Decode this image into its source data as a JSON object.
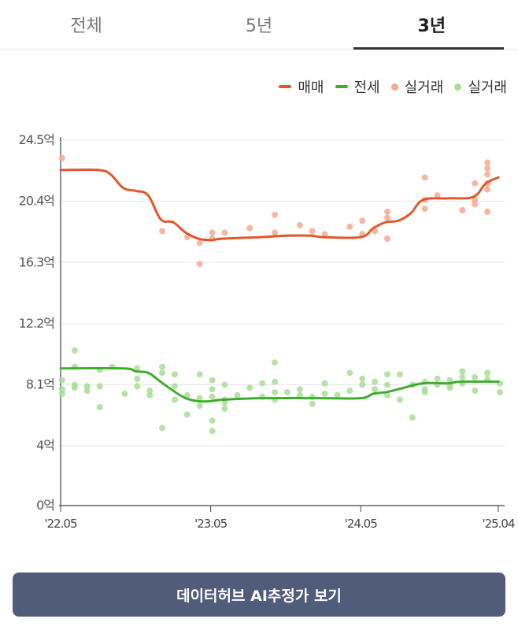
{
  "tabs": [
    {
      "label": "전체",
      "active": false
    },
    {
      "label": "5년",
      "active": false
    },
    {
      "label": "3년",
      "active": true
    }
  ],
  "legend": {
    "sale_label": "매매",
    "jeonse_label": "전세",
    "sale_tx_label": "실거래",
    "jeonse_tx_label": "실거래"
  },
  "colors": {
    "sale": "#e2572a",
    "jeonse": "#3dae2b",
    "sale_dot": "#f4a994",
    "jeonse_dot": "#a8dd97",
    "grid": "#e4e4ee",
    "axis": "#444444"
  },
  "cta_label": "데이터허브 AI추정가 보기",
  "chart_data": {
    "type": "line",
    "y_unit": "억",
    "ylim": [
      0,
      24.5
    ],
    "y_ticks": [
      {
        "value": 0,
        "label": "0억"
      },
      {
        "value": 4,
        "label": "4억"
      },
      {
        "value": 8.1,
        "label": "8.1억"
      },
      {
        "value": 12.2,
        "label": "12.2억"
      },
      {
        "value": 16.3,
        "label": "16.3억"
      },
      {
        "value": 20.4,
        "label": "20.4억"
      },
      {
        "value": 24.5,
        "label": "24.5억"
      }
    ],
    "xlim": [
      "2022-05",
      "2025-04"
    ],
    "x_ticks": [
      {
        "value": "2022-05",
        "label": "'22.05"
      },
      {
        "value": "2023-05",
        "label": "'23.05"
      },
      {
        "value": "2024-05",
        "label": "'24.05"
      },
      {
        "value": "2025-04",
        "label": "'25.04"
      }
    ],
    "grid": true,
    "series": [
      {
        "name": "매매",
        "kind": "line",
        "points": [
          [
            "2022-05",
            22.5
          ],
          [
            "2022-08",
            22.5
          ],
          [
            "2022-09",
            22.2
          ],
          [
            "2022-10",
            21.3
          ],
          [
            "2022-11",
            21.1
          ],
          [
            "2022-12",
            20.8
          ],
          [
            "2023-01",
            19.2
          ],
          [
            "2023-02",
            19.0
          ],
          [
            "2023-03",
            18.3
          ],
          [
            "2023-04",
            17.9
          ],
          [
            "2023-05",
            17.8
          ],
          [
            "2023-06",
            17.9
          ],
          [
            "2023-09",
            18.0
          ],
          [
            "2023-11",
            18.1
          ],
          [
            "2024-01",
            18.1
          ],
          [
            "2024-02",
            18.0
          ],
          [
            "2024-05",
            18.0
          ],
          [
            "2024-06",
            18.6
          ],
          [
            "2024-07",
            19.0
          ],
          [
            "2024-08",
            19.1
          ],
          [
            "2024-09",
            19.6
          ],
          [
            "2024-10",
            20.5
          ],
          [
            "2024-12",
            20.6
          ],
          [
            "2025-02",
            20.7
          ],
          [
            "2025-03",
            21.6
          ],
          [
            "2025-04",
            22.0
          ]
        ]
      },
      {
        "name": "전세",
        "kind": "line",
        "points": [
          [
            "2022-05",
            9.2
          ],
          [
            "2022-10",
            9.2
          ],
          [
            "2022-11",
            9.0
          ],
          [
            "2022-12",
            8.9
          ],
          [
            "2023-01",
            8.3
          ],
          [
            "2023-02",
            7.7
          ],
          [
            "2023-03",
            7.2
          ],
          [
            "2023-04",
            7.0
          ],
          [
            "2023-05",
            7.0
          ],
          [
            "2023-06",
            7.1
          ],
          [
            "2023-09",
            7.2
          ],
          [
            "2024-02",
            7.2
          ],
          [
            "2024-05",
            7.2
          ],
          [
            "2024-06",
            7.5
          ],
          [
            "2024-07",
            7.6
          ],
          [
            "2024-08",
            7.8
          ],
          [
            "2024-10",
            8.2
          ],
          [
            "2024-12",
            8.2
          ],
          [
            "2025-01",
            8.3
          ],
          [
            "2025-04",
            8.3
          ]
        ]
      },
      {
        "name": "실거래",
        "kind": "scatter",
        "of": "매매",
        "points": [
          [
            "2022-05",
            23.3
          ],
          [
            "2023-01",
            18.4
          ],
          [
            "2023-03",
            18.0
          ],
          [
            "2023-04",
            17.6
          ],
          [
            "2023-04",
            16.2
          ],
          [
            "2023-05",
            18.3
          ],
          [
            "2023-05",
            17.9
          ],
          [
            "2023-06",
            18.3
          ],
          [
            "2023-08",
            18.6
          ],
          [
            "2023-10",
            19.5
          ],
          [
            "2023-10",
            18.3
          ],
          [
            "2023-12",
            18.8
          ],
          [
            "2024-01",
            18.4
          ],
          [
            "2024-02",
            18.2
          ],
          [
            "2024-04",
            18.7
          ],
          [
            "2024-05",
            18.2
          ],
          [
            "2024-05",
            19.1
          ],
          [
            "2024-06",
            18.4
          ],
          [
            "2024-07",
            19.7
          ],
          [
            "2024-07",
            19.3
          ],
          [
            "2024-07",
            17.9
          ],
          [
            "2024-10",
            22.0
          ],
          [
            "2024-10",
            20.5
          ],
          [
            "2024-10",
            19.9
          ],
          [
            "2024-11",
            20.8
          ],
          [
            "2025-01",
            19.8
          ],
          [
            "2025-02",
            20.5
          ],
          [
            "2025-02",
            20.2
          ],
          [
            "2025-02",
            21.6
          ],
          [
            "2025-03",
            23.0
          ],
          [
            "2025-03",
            22.6
          ],
          [
            "2025-03",
            22.2
          ],
          [
            "2025-03",
            21.6
          ],
          [
            "2025-03",
            21.2
          ],
          [
            "2025-03",
            19.7
          ]
        ]
      },
      {
        "name": "실거래",
        "kind": "scatter",
        "of": "전세",
        "points": [
          [
            "2022-05",
            8.4
          ],
          [
            "2022-05",
            7.8
          ],
          [
            "2022-05",
            7.5
          ],
          [
            "2022-06",
            9.3
          ],
          [
            "2022-06",
            7.9
          ],
          [
            "2022-06",
            8.1
          ],
          [
            "2022-06",
            10.4
          ],
          [
            "2022-07",
            8.0
          ],
          [
            "2022-07",
            7.7
          ],
          [
            "2022-08",
            6.6
          ],
          [
            "2022-08",
            8.0
          ],
          [
            "2022-08",
            9.1
          ],
          [
            "2022-09",
            9.3
          ],
          [
            "2022-10",
            7.5
          ],
          [
            "2022-11",
            9.2
          ],
          [
            "2022-11",
            8.5
          ],
          [
            "2022-11",
            8.0
          ],
          [
            "2022-12",
            7.7
          ],
          [
            "2022-12",
            7.4
          ],
          [
            "2023-01",
            9.3
          ],
          [
            "2023-01",
            8.9
          ],
          [
            "2023-01",
            5.2
          ],
          [
            "2023-02",
            8.8
          ],
          [
            "2023-02",
            8.0
          ],
          [
            "2023-02",
            7.1
          ],
          [
            "2023-03",
            6.1
          ],
          [
            "2023-03",
            7.4
          ],
          [
            "2023-04",
            8.8
          ],
          [
            "2023-04",
            7.2
          ],
          [
            "2023-04",
            6.7
          ],
          [
            "2023-05",
            8.4
          ],
          [
            "2023-05",
            7.8
          ],
          [
            "2023-05",
            7.3
          ],
          [
            "2023-05",
            5.7
          ],
          [
            "2023-05",
            5.0
          ],
          [
            "2023-06",
            8.1
          ],
          [
            "2023-06",
            7.1
          ],
          [
            "2023-06",
            6.9
          ],
          [
            "2023-06",
            6.5
          ],
          [
            "2023-07",
            7.4
          ],
          [
            "2023-08",
            7.9
          ],
          [
            "2023-09",
            8.2
          ],
          [
            "2023-09",
            7.3
          ],
          [
            "2023-10",
            9.6
          ],
          [
            "2023-10",
            8.3
          ],
          [
            "2023-10",
            7.6
          ],
          [
            "2023-10",
            7.1
          ],
          [
            "2023-11",
            7.6
          ],
          [
            "2023-12",
            7.8
          ],
          [
            "2023-12",
            7.4
          ],
          [
            "2024-01",
            7.3
          ],
          [
            "2024-01",
            6.8
          ],
          [
            "2024-02",
            8.2
          ],
          [
            "2024-02",
            7.5
          ],
          [
            "2024-03",
            7.4
          ],
          [
            "2024-04",
            8.9
          ],
          [
            "2024-04",
            7.7
          ],
          [
            "2024-05",
            8.5
          ],
          [
            "2024-05",
            8.1
          ],
          [
            "2024-06",
            8.3
          ],
          [
            "2024-06",
            7.8
          ],
          [
            "2024-07",
            8.8
          ],
          [
            "2024-07",
            8.1
          ],
          [
            "2024-07",
            7.4
          ],
          [
            "2024-08",
            8.8
          ],
          [
            "2024-08",
            7.1
          ],
          [
            "2024-09",
            5.9
          ],
          [
            "2024-09",
            8.1
          ],
          [
            "2024-10",
            8.3
          ],
          [
            "2024-10",
            7.8
          ],
          [
            "2024-10",
            7.6
          ],
          [
            "2024-11",
            8.5
          ],
          [
            "2024-11",
            8.1
          ],
          [
            "2024-12",
            8.4
          ],
          [
            "2024-12",
            8.1
          ],
          [
            "2024-12",
            7.9
          ],
          [
            "2025-01",
            9.0
          ],
          [
            "2025-01",
            8.6
          ],
          [
            "2025-01",
            8.2
          ],
          [
            "2025-02",
            8.6
          ],
          [
            "2025-02",
            7.7
          ],
          [
            "2025-03",
            8.9
          ],
          [
            "2025-03",
            8.5
          ],
          [
            "2025-04",
            8.2
          ],
          [
            "2025-04",
            7.6
          ]
        ]
      }
    ]
  }
}
